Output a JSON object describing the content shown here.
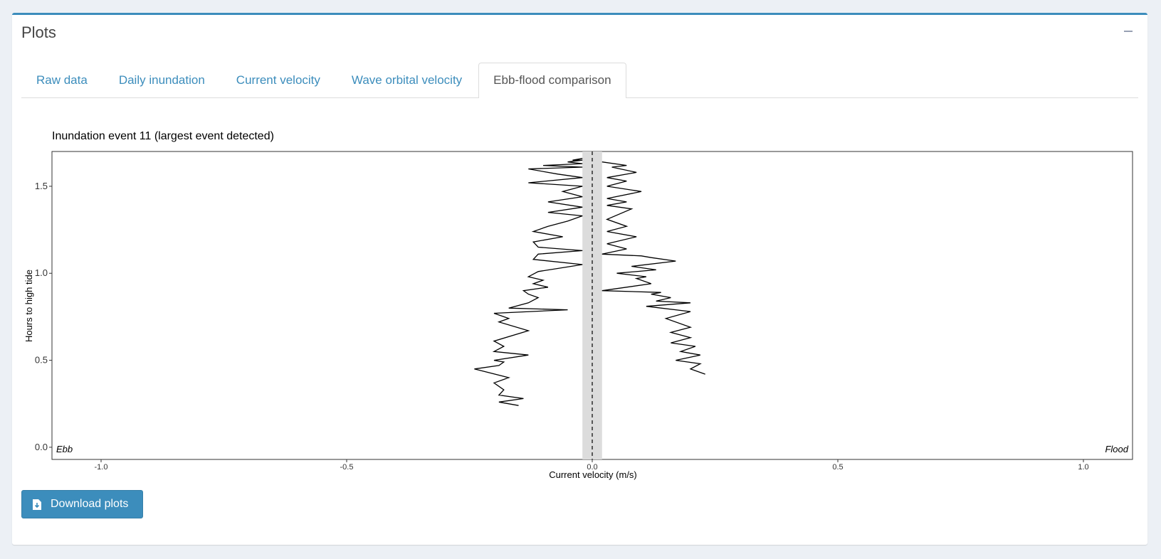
{
  "box": {
    "title": "Plots"
  },
  "tabs": [
    {
      "label": "Raw data",
      "active": false
    },
    {
      "label": "Daily inundation",
      "active": false
    },
    {
      "label": "Current velocity",
      "active": false
    },
    {
      "label": "Wave orbital velocity",
      "active": false
    },
    {
      "label": "Ebb-flood comparison",
      "active": true
    }
  ],
  "download": {
    "label": "Download plots"
  },
  "chart_data": {
    "type": "line",
    "title": "Inundation event 11 (largest event detected)",
    "xlabel": "Current velocity (m/s)",
    "ylabel": "Hours to high tide",
    "xlim": [
      -1.1,
      1.1
    ],
    "ylim": [
      -0.07,
      1.7
    ],
    "xticks": [
      -1.0,
      -0.5,
      0.0,
      0.5,
      1.0
    ],
    "xtick_labels": [
      "-1.0",
      "-0.5",
      "0.0",
      "0.5",
      "1.0"
    ],
    "yticks": [
      0.0,
      0.5,
      1.0,
      1.5
    ],
    "ytick_labels": [
      "0.0",
      "0.5",
      "1.0",
      "1.5"
    ],
    "annotations": {
      "left": "Ebb",
      "right": "Flood"
    },
    "grid": false,
    "reference_line": {
      "x": 0.0,
      "style": "dashed"
    },
    "shaded_band": {
      "x_from": -0.02,
      "x_to": 0.02
    },
    "series": [
      {
        "side": "ebb",
        "x": [
          -0.15,
          -0.19,
          -0.14,
          -0.19,
          -0.18,
          -0.2,
          -0.17,
          -0.24,
          -0.19,
          -0.18,
          -0.2,
          -0.13,
          -0.2,
          -0.18,
          -0.2,
          -0.13,
          -0.19,
          -0.17,
          -0.2,
          -0.05,
          -0.17,
          -0.13,
          -0.11,
          -0.13,
          -0.14,
          -0.09,
          -0.12,
          -0.1,
          -0.13,
          -0.11,
          -0.02,
          -0.12,
          -0.11,
          -0.02,
          -0.11,
          -0.12,
          -0.06,
          -0.12,
          -0.09,
          -0.05,
          -0.02,
          -0.09,
          -0.02,
          -0.09,
          -0.02,
          -0.06,
          -0.02,
          -0.13,
          -0.02,
          -0.07,
          -0.13,
          -0.02,
          -0.1,
          -0.02,
          -0.05,
          -0.02,
          -0.04,
          -0.02
        ],
        "y": [
          0.24,
          0.26,
          0.28,
          0.3,
          0.33,
          0.37,
          0.4,
          0.45,
          0.47,
          0.49,
          0.5,
          0.53,
          0.55,
          0.58,
          0.61,
          0.67,
          0.72,
          0.74,
          0.77,
          0.79,
          0.8,
          0.83,
          0.86,
          0.88,
          0.9,
          0.92,
          0.94,
          0.96,
          0.98,
          1.01,
          1.05,
          1.08,
          1.11,
          1.13,
          1.15,
          1.18,
          1.21,
          1.24,
          1.27,
          1.3,
          1.33,
          1.35,
          1.38,
          1.41,
          1.44,
          1.47,
          1.5,
          1.52,
          1.55,
          1.57,
          1.6,
          1.61,
          1.62,
          1.63,
          1.64,
          1.65,
          1.65,
          1.66
        ]
      },
      {
        "side": "flood",
        "x": [
          0.23,
          0.2,
          0.22,
          0.17,
          0.22,
          0.18,
          0.21,
          0.16,
          0.2,
          0.16,
          0.2,
          0.15,
          0.2,
          0.11,
          0.2,
          0.13,
          0.16,
          0.12,
          0.14,
          0.02,
          0.12,
          0.09,
          0.11,
          0.05,
          0.13,
          0.08,
          0.17,
          0.12,
          0.1,
          0.02,
          0.07,
          0.03,
          0.09,
          0.03,
          0.07,
          0.03,
          0.08,
          0.03,
          0.07,
          0.03,
          0.1,
          0.03,
          0.07,
          0.03,
          0.09,
          0.04,
          0.07,
          0.02
        ],
        "y": [
          0.42,
          0.45,
          0.48,
          0.5,
          0.53,
          0.55,
          0.58,
          0.6,
          0.63,
          0.66,
          0.69,
          0.74,
          0.78,
          0.81,
          0.83,
          0.84,
          0.86,
          0.88,
          0.89,
          0.9,
          0.94,
          0.97,
          0.98,
          1.0,
          1.02,
          1.04,
          1.07,
          1.09,
          1.1,
          1.11,
          1.14,
          1.17,
          1.21,
          1.24,
          1.27,
          1.31,
          1.37,
          1.39,
          1.41,
          1.43,
          1.47,
          1.5,
          1.53,
          1.55,
          1.58,
          1.61,
          1.62,
          1.64
        ]
      }
    ]
  }
}
